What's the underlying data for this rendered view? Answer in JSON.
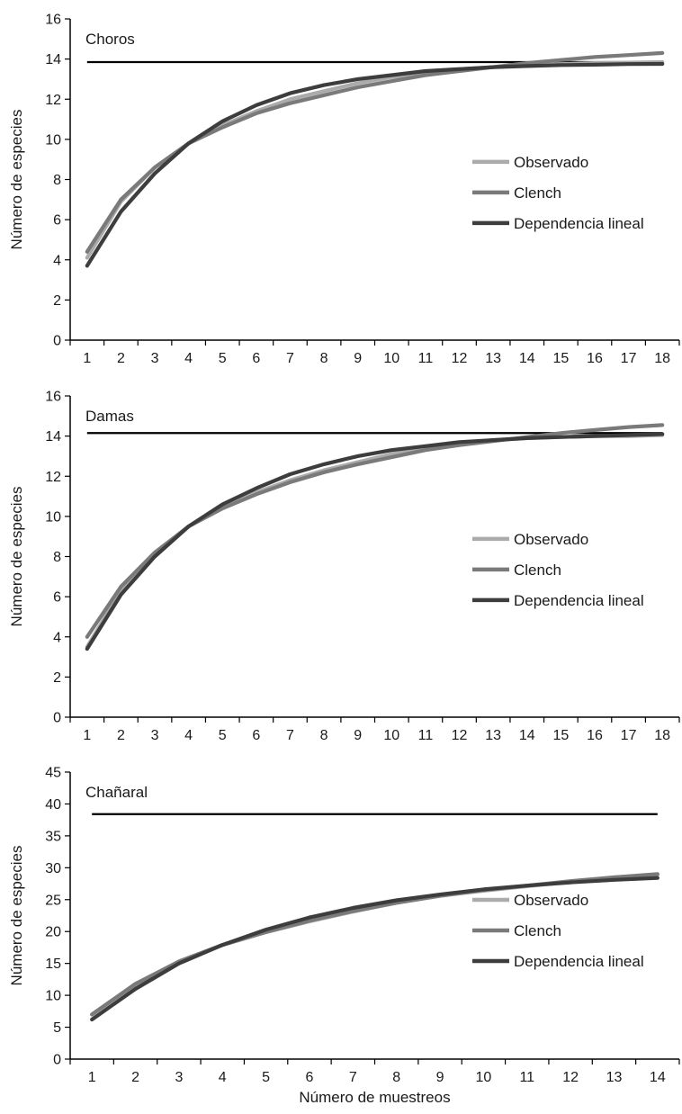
{
  "figure": {
    "xlabel": "Número de muestreos"
  },
  "chart_data": [
    {
      "type": "line",
      "title": "Choros",
      "ylabel": "Número de especies",
      "xlabel": "",
      "ylim": [
        0,
        16
      ],
      "yticks": [
        0,
        2,
        4,
        6,
        8,
        10,
        12,
        14,
        16
      ],
      "x": [
        1,
        2,
        3,
        4,
        5,
        6,
        7,
        8,
        9,
        10,
        11,
        12,
        13,
        14,
        15,
        16,
        17,
        18
      ],
      "legend": "right",
      "grid": false,
      "reference_line": 13.85,
      "series": [
        {
          "name": "Observado",
          "color": "#ababab",
          "values": [
            4.1,
            6.9,
            8.6,
            9.8,
            10.7,
            11.4,
            12.0,
            12.4,
            12.8,
            13.1,
            13.3,
            13.5,
            13.6,
            13.7,
            13.75,
            13.8,
            13.82,
            13.85
          ]
        },
        {
          "name": "Clench",
          "color": "#7a7a7a",
          "values": [
            4.4,
            7.0,
            8.6,
            9.8,
            10.6,
            11.3,
            11.8,
            12.2,
            12.6,
            12.9,
            13.2,
            13.4,
            13.6,
            13.8,
            13.95,
            14.1,
            14.2,
            14.3
          ]
        },
        {
          "name": "Dependencia lineal",
          "color": "#3d3d3d",
          "values": [
            3.7,
            6.4,
            8.3,
            9.8,
            10.9,
            11.7,
            12.3,
            12.7,
            13.0,
            13.2,
            13.4,
            13.5,
            13.6,
            13.65,
            13.7,
            13.72,
            13.75,
            13.76
          ]
        }
      ]
    },
    {
      "type": "line",
      "title": "Damas",
      "ylabel": "Número de especies",
      "xlabel": "",
      "ylim": [
        0,
        16
      ],
      "yticks": [
        0,
        2,
        4,
        6,
        8,
        10,
        12,
        14,
        16
      ],
      "x": [
        1,
        2,
        3,
        4,
        5,
        6,
        7,
        8,
        9,
        10,
        11,
        12,
        13,
        14,
        15,
        16,
        17,
        18
      ],
      "legend": "right",
      "grid": false,
      "reference_line": 14.15,
      "series": [
        {
          "name": "Observado",
          "color": "#ababab",
          "values": [
            3.5,
            6.3,
            8.1,
            9.5,
            10.5,
            11.2,
            11.8,
            12.3,
            12.7,
            13.1,
            13.4,
            13.6,
            13.8,
            13.9,
            13.95,
            14.0,
            14.0,
            14.05
          ]
        },
        {
          "name": "Clench",
          "color": "#7a7a7a",
          "values": [
            4.0,
            6.5,
            8.2,
            9.5,
            10.4,
            11.1,
            11.7,
            12.2,
            12.6,
            12.95,
            13.3,
            13.55,
            13.75,
            13.95,
            14.15,
            14.3,
            14.45,
            14.55
          ]
        },
        {
          "name": "Dependencia lineal",
          "color": "#3d3d3d",
          "values": [
            3.4,
            6.1,
            8.0,
            9.5,
            10.6,
            11.4,
            12.1,
            12.6,
            13.0,
            13.3,
            13.5,
            13.7,
            13.8,
            13.9,
            13.95,
            14.0,
            14.05,
            14.1
          ]
        }
      ]
    },
    {
      "type": "line",
      "title": "Chañaral",
      "ylabel": "Número de especies",
      "xlabel": "Número de muestreos",
      "ylim": [
        0,
        45
      ],
      "yticks": [
        0,
        5,
        10,
        15,
        20,
        25,
        30,
        35,
        40,
        45
      ],
      "x": [
        1,
        2,
        3,
        4,
        5,
        6,
        7,
        8,
        9,
        10,
        11,
        12,
        13,
        14
      ],
      "legend": "right",
      "grid": false,
      "reference_line": 38.4,
      "series": [
        {
          "name": "Observado",
          "color": "#ababab",
          "values": [
            7.0,
            11.7,
            15.3,
            17.9,
            19.9,
            21.6,
            23.1,
            24.5,
            25.6,
            26.4,
            27.1,
            27.8,
            28.5,
            28.9
          ]
        },
        {
          "name": "Clench",
          "color": "#7a7a7a",
          "values": [
            7.0,
            11.8,
            15.3,
            17.9,
            19.9,
            21.7,
            23.2,
            24.5,
            25.6,
            26.5,
            27.2,
            27.9,
            28.5,
            29.0
          ]
        },
        {
          "name": "Dependencia lineal",
          "color": "#3d3d3d",
          "values": [
            6.2,
            11.0,
            15.0,
            17.9,
            20.3,
            22.2,
            23.7,
            24.9,
            25.8,
            26.6,
            27.2,
            27.7,
            28.1,
            28.4
          ]
        }
      ]
    }
  ]
}
